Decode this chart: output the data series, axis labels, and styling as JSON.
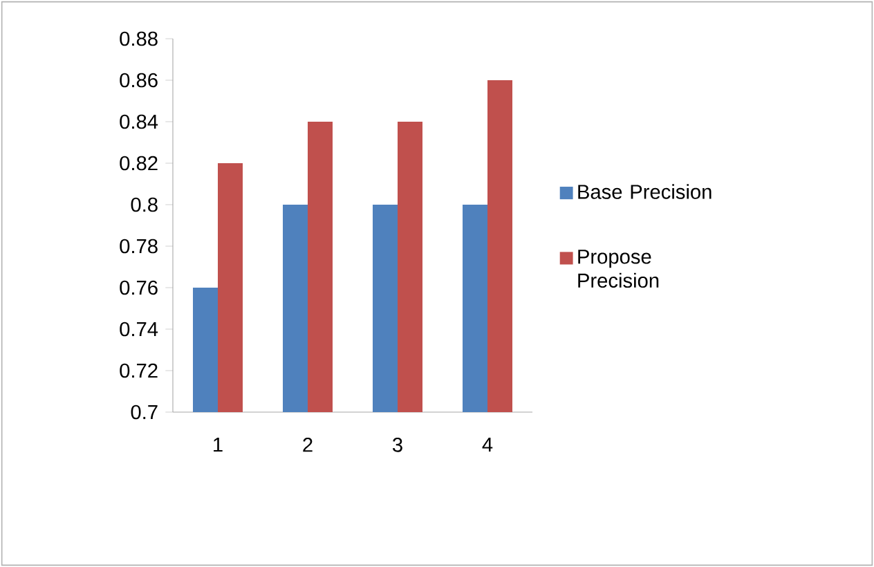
{
  "chart_data": {
    "type": "bar",
    "categories": [
      "1",
      "2",
      "3",
      "4"
    ],
    "series": [
      {
        "name": "Base Precision",
        "color": "#4f81bd",
        "values": [
          0.76,
          0.8,
          0.8,
          0.8
        ]
      },
      {
        "name": "Propose Precision",
        "color": "#c0504d",
        "values": [
          0.82,
          0.84,
          0.84,
          0.86
        ]
      }
    ],
    "ylim": [
      0.7,
      0.88
    ],
    "yticks": [
      0.7,
      0.72,
      0.74,
      0.76,
      0.78,
      0.8,
      0.82,
      0.84,
      0.86,
      0.88
    ],
    "grid": false,
    "legend": "right"
  }
}
